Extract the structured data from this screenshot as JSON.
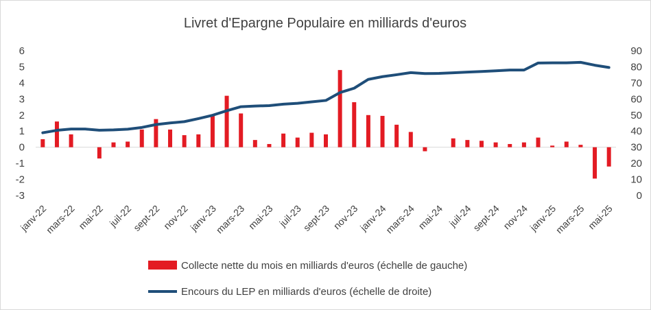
{
  "chart_data": {
    "type": "bar+line",
    "title": "Livret d'Epargne Populaire en milliards d'euros",
    "months": [
      "janv-22",
      "févr-22",
      "mars-22",
      "avr-22",
      "mai-22",
      "juin-22",
      "juil-22",
      "août-22",
      "sept-22",
      "oct-22",
      "nov-22",
      "déc-22",
      "janv-23",
      "févr-23",
      "mars-23",
      "avr-23",
      "mai-23",
      "juin-23",
      "juil-23",
      "août-23",
      "sept-23",
      "oct-23",
      "nov-23",
      "déc-23",
      "janv-24",
      "févr-24",
      "mars-24",
      "avr-24",
      "mai-24",
      "juin-24",
      "juil-24",
      "août-24",
      "sept-24",
      "oct-24",
      "nov-24",
      "déc-24",
      "janv-25",
      "févr-25",
      "mars-25",
      "avr-25",
      "mai-25"
    ],
    "x_tick_labels": [
      "janv-22",
      "mars-22",
      "mai-22",
      "juil-22",
      "sept-22",
      "nov-22",
      "janv-23",
      "mars-23",
      "mai-23",
      "juil-23",
      "sept-23",
      "nov-23",
      "janv-24",
      "mars-24",
      "mai-24",
      "juil-24",
      "sept-24",
      "nov-24",
      "janv-25",
      "mars-25",
      "mai-25"
    ],
    "left_axis": {
      "ylim": [
        -3,
        6
      ],
      "ticks": [
        -3,
        -2,
        -1,
        0,
        1,
        2,
        3,
        4,
        5,
        6
      ]
    },
    "right_axis": {
      "ylim": [
        0,
        90
      ],
      "ticks": [
        0,
        10,
        20,
        30,
        40,
        50,
        60,
        70,
        80,
        90
      ]
    },
    "series": [
      {
        "name": "Collecte nette du mois en milliards d'euros (échelle de gauche)",
        "type": "bar",
        "axis": "left",
        "color": "#e31b23",
        "values": [
          0.5,
          1.6,
          0.8,
          0.0,
          -0.7,
          0.3,
          0.35,
          1.1,
          1.75,
          1.1,
          0.75,
          0.8,
          1.95,
          3.2,
          2.1,
          0.45,
          0.2,
          0.85,
          0.6,
          0.9,
          0.8,
          4.8,
          2.8,
          2.0,
          1.95,
          1.4,
          0.95,
          -0.25,
          0.0,
          0.55,
          0.45,
          0.4,
          0.3,
          0.2,
          0.3,
          0.6,
          0.1,
          0.35,
          0.15,
          -1.95,
          -1.2
        ]
      },
      {
        "name": "Encours du LEP en milliards d'euros (échelle de droite)",
        "type": "line",
        "axis": "right",
        "color": "#1f4e79",
        "values": [
          39,
          40.5,
          41.3,
          41.3,
          40.6,
          40.8,
          41.2,
          42.3,
          44.1,
          45.1,
          45.9,
          47.8,
          49.9,
          52.7,
          55.2,
          55.6,
          55.9,
          56.8,
          57.3,
          58.2,
          59.1,
          64.0,
          66.7,
          72.2,
          73.9,
          75.1,
          76.4,
          75.8,
          75.9,
          76.3,
          76.7,
          77.1,
          77.5,
          78.0,
          78.0,
          82.4,
          82.5,
          82.5,
          82.8,
          81.0,
          79.6
        ]
      }
    ],
    "legend_position": "bottom"
  }
}
